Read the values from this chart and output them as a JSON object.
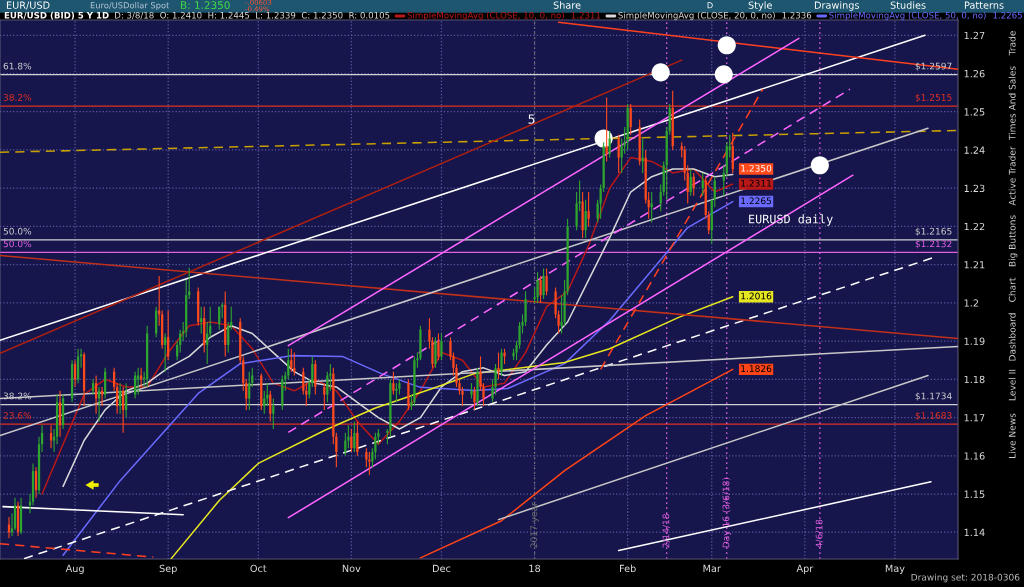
{
  "chart_data": {
    "type": "candlestick",
    "title": "EUR/USD (BID) 5 Y 1D",
    "subtitle": "D: 3/8/18  O: 1.2410  H: 1.2445  L: 1.2339  C: 1.2350  R: 0.0105",
    "x": [
      "2017-07-10",
      "2017-07-11",
      "2017-07-12",
      "2017-07-13",
      "2017-07-14",
      "2017-07-17",
      "2017-07-18",
      "2017-07-19",
      "2017-07-20",
      "2017-07-21",
      "2017-07-24",
      "2017-07-25",
      "2017-07-26",
      "2017-07-27",
      "2017-07-28",
      "2017-07-31",
      "2017-08-01",
      "2017-08-02",
      "2017-08-03",
      "2017-08-04",
      "2017-08-07",
      "2017-08-08",
      "2017-08-09",
      "2017-08-10",
      "2017-08-11",
      "2017-08-14",
      "2017-08-15",
      "2017-08-16",
      "2017-08-17",
      "2017-08-18",
      "2017-08-21",
      "2017-08-22",
      "2017-08-23",
      "2017-08-24",
      "2017-08-25",
      "2017-08-28",
      "2017-08-29",
      "2017-08-30",
      "2017-08-31",
      "2017-09-01",
      "2017-09-04",
      "2017-09-05",
      "2017-09-06",
      "2017-09-07",
      "2017-09-08",
      "2017-09-11",
      "2017-09-12",
      "2017-09-13",
      "2017-09-14",
      "2017-09-15",
      "2017-09-18",
      "2017-09-19",
      "2017-09-20",
      "2017-09-21",
      "2017-09-22",
      "2017-09-25",
      "2017-09-26",
      "2017-09-27",
      "2017-09-28",
      "2017-09-29",
      "2017-10-02",
      "2017-10-03",
      "2017-10-04",
      "2017-10-05",
      "2017-10-06",
      "2017-10-09",
      "2017-10-10",
      "2017-10-11",
      "2017-10-12",
      "2017-10-13",
      "2017-10-16",
      "2017-10-17",
      "2017-10-18",
      "2017-10-19",
      "2017-10-20",
      "2017-10-23",
      "2017-10-24",
      "2017-10-25",
      "2017-10-26",
      "2017-10-27",
      "2017-10-30",
      "2017-10-31",
      "2017-11-01",
      "2017-11-02",
      "2017-11-03",
      "2017-11-06",
      "2017-11-07",
      "2017-11-08",
      "2017-11-09",
      "2017-11-10",
      "2017-11-13",
      "2017-11-14",
      "2017-11-15",
      "2017-11-16",
      "2017-11-17",
      "2017-11-20",
      "2017-11-21",
      "2017-11-22",
      "2017-11-23",
      "2017-11-24",
      "2017-11-27",
      "2017-11-28",
      "2017-11-29",
      "2017-11-30",
      "2017-12-01",
      "2017-12-04",
      "2017-12-05",
      "2017-12-06",
      "2017-12-07",
      "2017-12-08",
      "2017-12-11",
      "2017-12-12",
      "2017-12-13",
      "2017-12-14",
      "2017-12-15",
      "2017-12-18",
      "2017-12-19",
      "2017-12-20",
      "2017-12-21",
      "2017-12-22",
      "2017-12-25",
      "2017-12-26",
      "2017-12-27",
      "2017-12-28",
      "2017-12-29",
      "2018-01-01",
      "2018-01-02",
      "2018-01-03",
      "2018-01-04",
      "2018-01-05",
      "2018-01-08",
      "2018-01-09",
      "2018-01-10",
      "2018-01-11",
      "2018-01-12",
      "2018-01-15",
      "2018-01-16",
      "2018-01-17",
      "2018-01-18",
      "2018-01-19",
      "2018-01-22",
      "2018-01-23",
      "2018-01-24",
      "2018-01-25",
      "2018-01-26",
      "2018-01-29",
      "2018-01-30",
      "2018-01-31",
      "2018-02-01",
      "2018-02-02",
      "2018-02-05",
      "2018-02-06",
      "2018-02-07",
      "2018-02-08",
      "2018-02-09",
      "2018-02-12",
      "2018-02-13",
      "2018-02-14",
      "2018-02-15",
      "2018-02-16",
      "2018-02-19",
      "2018-02-20",
      "2018-02-21",
      "2018-02-22",
      "2018-02-23",
      "2018-02-26",
      "2018-02-27",
      "2018-02-28",
      "2018-03-01",
      "2018-03-02",
      "2018-03-05",
      "2018-03-06",
      "2018-03-07",
      "2018-03-08"
    ],
    "ohlc": [
      [
        1.142,
        1.144,
        1.1385,
        1.14
      ],
      [
        1.14,
        1.145,
        1.139,
        1.141
      ],
      [
        1.141,
        1.149,
        1.1405,
        1.147
      ],
      [
        1.147,
        1.148,
        1.139,
        1.14
      ],
      [
        1.14,
        1.149,
        1.1395,
        1.147
      ],
      [
        1.147,
        1.15,
        1.145,
        1.148
      ],
      [
        1.148,
        1.158,
        1.147,
        1.156
      ],
      [
        1.156,
        1.157,
        1.149,
        1.151
      ],
      [
        1.151,
        1.165,
        1.15,
        1.163
      ],
      [
        1.163,
        1.168,
        1.161,
        1.166
      ],
      [
        1.166,
        1.168,
        1.162,
        1.164
      ],
      [
        1.164,
        1.167,
        1.161,
        1.165
      ],
      [
        1.165,
        1.176,
        1.163,
        1.174
      ],
      [
        1.174,
        1.177,
        1.165,
        1.168
      ],
      [
        1.168,
        1.176,
        1.167,
        1.175
      ],
      [
        1.175,
        1.185,
        1.174,
        1.184
      ],
      [
        1.184,
        1.185,
        1.178,
        1.18
      ],
      [
        1.18,
        1.188,
        1.179,
        1.186
      ],
      [
        1.186,
        1.188,
        1.183,
        1.1865
      ],
      [
        1.1865,
        1.187,
        1.173,
        1.177
      ],
      [
        1.177,
        1.18,
        1.176,
        1.179
      ],
      [
        1.179,
        1.181,
        1.171,
        1.175
      ],
      [
        1.175,
        1.178,
        1.169,
        1.177
      ],
      [
        1.177,
        1.178,
        1.173,
        1.176
      ],
      [
        1.176,
        1.183,
        1.175,
        1.182
      ],
      [
        1.182,
        1.183,
        1.177,
        1.178
      ],
      [
        1.178,
        1.179,
        1.171,
        1.173
      ],
      [
        1.173,
        1.179,
        1.171,
        1.177
      ],
      [
        1.177,
        1.178,
        1.166,
        1.172
      ],
      [
        1.172,
        1.179,
        1.17,
        1.176
      ],
      [
        1.176,
        1.182,
        1.175,
        1.181
      ],
      [
        1.18,
        1.183,
        1.176,
        1.181
      ],
      [
        1.181,
        1.183,
        1.178,
        1.18
      ],
      [
        1.18,
        1.182,
        1.178,
        1.1805
      ],
      [
        1.18,
        1.194,
        1.178,
        1.192
      ],
      [
        1.192,
        1.199,
        1.191,
        1.198
      ],
      [
        1.198,
        1.207,
        1.194,
        1.197
      ],
      [
        1.197,
        1.198,
        1.188,
        1.189
      ],
      [
        1.189,
        1.192,
        1.182,
        1.191
      ],
      [
        1.191,
        1.198,
        1.185,
        1.186
      ],
      [
        1.186,
        1.19,
        1.185,
        1.189
      ],
      [
        1.189,
        1.193,
        1.187,
        1.192
      ],
      [
        1.192,
        1.195,
        1.19,
        1.1925
      ],
      [
        1.1925,
        1.206,
        1.191,
        1.202
      ],
      [
        1.202,
        1.2092,
        1.201,
        1.203
      ],
      [
        1.203,
        1.204,
        1.194,
        1.195
      ],
      [
        1.195,
        1.199,
        1.192,
        1.196
      ],
      [
        1.196,
        1.199,
        1.187,
        1.189
      ],
      [
        1.189,
        1.195,
        1.184,
        1.192
      ],
      [
        1.192,
        1.199,
        1.191,
        1.194
      ],
      [
        1.1945,
        1.199,
        1.193,
        1.199
      ],
      [
        1.199,
        1.2,
        1.196,
        1.1995
      ],
      [
        1.1995,
        1.203,
        1.186,
        1.189
      ],
      [
        1.189,
        1.195,
        1.187,
        1.194
      ],
      [
        1.194,
        1.199,
        1.193,
        1.195
      ],
      [
        1.195,
        1.196,
        1.184,
        1.185
      ],
      [
        1.185,
        1.186,
        1.177,
        1.179
      ],
      [
        1.179,
        1.18,
        1.172,
        1.175
      ],
      [
        1.175,
        1.182,
        1.172,
        1.179
      ],
      [
        1.179,
        1.183,
        1.178,
        1.181
      ],
      [
        1.181,
        1.1815,
        1.172,
        1.173
      ],
      [
        1.173,
        1.177,
        1.171,
        1.175
      ],
      [
        1.175,
        1.179,
        1.173,
        1.176
      ],
      [
        1.176,
        1.177,
        1.169,
        1.171
      ],
      [
        1.171,
        1.175,
        1.167,
        1.173
      ],
      [
        1.173,
        1.181,
        1.172,
        1.18
      ],
      [
        1.18,
        1.182,
        1.177,
        1.181
      ],
      [
        1.181,
        1.188,
        1.18,
        1.185
      ],
      [
        1.185,
        1.188,
        1.182,
        1.183
      ],
      [
        1.183,
        1.187,
        1.181,
        1.182
      ],
      [
        1.182,
        1.183,
        1.176,
        1.177
      ],
      [
        1.177,
        1.179,
        1.173,
        1.176
      ],
      [
        1.176,
        1.18,
        1.175,
        1.179
      ],
      [
        1.179,
        1.186,
        1.178,
        1.184
      ],
      [
        1.184,
        1.185,
        1.176,
        1.178
      ],
      [
        1.178,
        1.179,
        1.172,
        1.176
      ],
      [
        1.176,
        1.182,
        1.174,
        1.181
      ],
      [
        1.181,
        1.184,
        1.177,
        1.1815
      ],
      [
        1.1815,
        1.183,
        1.163,
        1.165
      ],
      [
        1.165,
        1.166,
        1.157,
        1.161
      ],
      [
        1.161,
        1.166,
        1.16,
        1.164
      ],
      [
        1.164,
        1.168,
        1.162,
        1.165
      ],
      [
        1.165,
        1.167,
        1.161,
        1.162
      ],
      [
        1.162,
        1.169,
        1.161,
        1.166
      ],
      [
        1.166,
        1.169,
        1.16,
        1.161
      ],
      [
        1.161,
        1.162,
        1.157,
        1.159
      ],
      [
        1.159,
        1.161,
        1.155,
        1.1585
      ],
      [
        1.1585,
        1.162,
        1.157,
        1.161
      ],
      [
        1.161,
        1.166,
        1.159,
        1.165
      ],
      [
        1.165,
        1.167,
        1.163,
        1.166
      ],
      [
        1.166,
        1.167,
        1.163,
        1.1665
      ],
      [
        1.1665,
        1.18,
        1.165,
        1.179
      ],
      [
        1.179,
        1.182,
        1.176,
        1.177
      ],
      [
        1.177,
        1.179,
        1.174,
        1.1775
      ],
      [
        1.1775,
        1.18,
        1.176,
        1.179
      ],
      [
        1.179,
        1.18,
        1.172,
        1.173
      ],
      [
        1.173,
        1.176,
        1.172,
        1.174
      ],
      [
        1.174,
        1.186,
        1.173,
        1.185
      ],
      [
        1.185,
        1.187,
        1.183,
        1.1855
      ],
      [
        1.1855,
        1.194,
        1.185,
        1.193
      ],
      [
        1.193,
        1.196,
        1.188,
        1.19
      ],
      [
        1.19,
        1.191,
        1.183,
        1.184
      ],
      [
        1.184,
        1.191,
        1.183,
        1.19
      ],
      [
        1.19,
        1.192,
        1.185,
        1.186
      ],
      [
        1.186,
        1.192,
        1.185,
        1.19
      ],
      [
        1.19,
        1.191,
        1.185,
        1.186
      ],
      [
        1.186,
        1.187,
        1.181,
        1.183
      ],
      [
        1.183,
        1.184,
        1.178,
        1.179
      ],
      [
        1.179,
        1.18,
        1.176,
        1.177
      ],
      [
        1.177,
        1.178,
        1.173,
        1.176
      ],
      [
        1.176,
        1.179,
        1.175,
        1.177
      ],
      [
        1.177,
        1.178,
        1.172,
        1.174
      ],
      [
        1.174,
        1.183,
        1.173,
        1.182
      ],
      [
        1.182,
        1.186,
        1.177,
        1.178
      ],
      [
        1.178,
        1.179,
        1.173,
        1.175
      ],
      [
        1.175,
        1.18,
        1.174,
        1.178
      ],
      [
        1.178,
        1.184,
        1.176,
        1.183
      ],
      [
        1.183,
        1.187,
        1.18,
        1.182
      ],
      [
        1.182,
        1.188,
        1.181,
        1.187
      ],
      [
        1.187,
        1.188,
        1.184,
        1.186
      ],
      [
        1.186,
        1.188,
        1.185,
        1.187
      ],
      [
        1.187,
        1.19,
        1.185,
        1.189
      ],
      [
        1.189,
        1.195,
        1.188,
        1.194
      ],
      [
        1.194,
        1.197,
        1.192,
        1.195
      ],
      [
        1.195,
        1.203,
        1.194,
        1.201
      ],
      [
        1.201,
        1.204,
        1.2,
        1.2015
      ],
      [
        1.2015,
        1.208,
        1.2,
        1.206
      ],
      [
        1.206,
        1.207,
        1.2,
        1.202
      ],
      [
        1.202,
        1.209,
        1.201,
        1.207
      ],
      [
        1.207,
        1.209,
        1.202,
        1.203
      ],
      [
        1.203,
        1.204,
        1.196,
        1.197
      ],
      [
        1.197,
        1.198,
        1.192,
        1.194
      ],
      [
        1.194,
        1.202,
        1.192,
        1.195
      ],
      [
        1.195,
        1.206,
        1.194,
        1.203
      ],
      [
        1.203,
        1.222,
        1.202,
        1.22
      ],
      [
        1.22,
        1.229,
        1.219,
        1.226
      ],
      [
        1.226,
        1.232,
        1.224,
        1.2265
      ],
      [
        1.2265,
        1.229,
        1.217,
        1.219
      ],
      [
        1.219,
        1.227,
        1.217,
        1.224
      ],
      [
        1.224,
        1.229,
        1.22,
        1.222
      ],
      [
        1.222,
        1.227,
        1.221,
        1.226
      ],
      [
        1.226,
        1.231,
        1.222,
        1.23
      ],
      [
        1.23,
        1.242,
        1.229,
        1.241
      ],
      [
        1.241,
        1.2537,
        1.237,
        1.239
      ],
      [
        1.239,
        1.245,
        1.238,
        1.243
      ],
      [
        1.243,
        1.244,
        1.234,
        1.238
      ],
      [
        1.238,
        1.243,
        1.234,
        1.241
      ],
      [
        1.241,
        1.246,
        1.239,
        1.242
      ],
      [
        1.242,
        1.252,
        1.24,
        1.251
      ],
      [
        1.251,
        1.252,
        1.244,
        1.246
      ],
      [
        1.246,
        1.248,
        1.236,
        1.237
      ],
      [
        1.237,
        1.243,
        1.234,
        1.238
      ],
      [
        1.238,
        1.24,
        1.226,
        1.227
      ],
      [
        1.227,
        1.229,
        1.222,
        1.225
      ],
      [
        1.225,
        1.229,
        1.221,
        1.226
      ],
      [
        1.226,
        1.231,
        1.224,
        1.229
      ],
      [
        1.229,
        1.237,
        1.228,
        1.236
      ],
      [
        1.236,
        1.246,
        1.227,
        1.245
      ],
      [
        1.245,
        1.252,
        1.244,
        1.251
      ],
      [
        1.251,
        1.2555,
        1.24,
        1.241
      ],
      [
        1.241,
        1.242,
        1.238,
        1.24
      ],
      [
        1.24,
        1.241,
        1.232,
        1.234
      ],
      [
        1.234,
        1.236,
        1.226,
        1.229
      ],
      [
        1.229,
        1.235,
        1.228,
        1.233
      ],
      [
        1.233,
        1.234,
        1.228,
        1.23
      ],
      [
        1.23,
        1.234,
        1.228,
        1.232
      ],
      [
        1.232,
        1.233,
        1.222,
        1.223
      ],
      [
        1.223,
        1.224,
        1.218,
        1.219
      ],
      [
        1.219,
        1.227,
        1.2155,
        1.227
      ],
      [
        1.227,
        1.233,
        1.225,
        1.232
      ],
      [
        1.232,
        1.236,
        1.228,
        1.234
      ],
      [
        1.234,
        1.242,
        1.233,
        1.241
      ],
      [
        1.24,
        1.244,
        1.238,
        1.241
      ],
      [
        1.241,
        1.2445,
        1.2339,
        1.235
      ]
    ],
    "series": [
      {
        "type": "line",
        "name": "SimpleMovingAvg (CLOSE, 10, 0, no)",
        "color": "#b81818",
        "x": [
          "2017-07-21",
          "2017-07-28",
          "2017-08-04",
          "2017-08-11",
          "2017-08-18",
          "2017-08-25",
          "2017-09-01",
          "2017-09-08",
          "2017-09-15",
          "2017-09-22",
          "2017-09-29",
          "2017-10-06",
          "2017-10-13",
          "2017-10-20",
          "2017-10-27",
          "2017-11-03",
          "2017-11-10",
          "2017-11-17",
          "2017-11-24",
          "2017-12-01",
          "2017-12-08",
          "2017-12-15",
          "2017-12-22",
          "2017-12-29",
          "2018-01-05",
          "2018-01-12",
          "2018-01-19",
          "2018-01-26",
          "2018-02-02",
          "2018-02-09",
          "2018-02-16",
          "2018-02-23",
          "2018-03-02",
          "2018-03-08"
        ],
        "values": [
          1.15,
          1.163,
          1.176,
          1.18,
          1.178,
          1.178,
          1.187,
          1.194,
          1.195,
          1.194,
          1.188,
          1.179,
          1.177,
          1.18,
          1.177,
          1.169,
          1.163,
          1.169,
          1.177,
          1.187,
          1.185,
          1.178,
          1.179,
          1.187,
          1.199,
          1.203,
          1.215,
          1.23,
          1.238,
          1.237,
          1.234,
          1.235,
          1.229,
          1.2311
        ],
        "value_labels": [
          null,
          null,
          null,
          null,
          null,
          null,
          null,
          null,
          null,
          null,
          null,
          null,
          null,
          null,
          null,
          null,
          null,
          null,
          null,
          null,
          null,
          null,
          null,
          null,
          null,
          null,
          null,
          null,
          null,
          null,
          null,
          null,
          null,
          "1.2311"
        ]
      },
      {
        "type": "line",
        "name": "SimpleMovingAvg (CLOSE, 20, 0, no)",
        "color": "#d8d8d8",
        "x": [
          "2017-07-28",
          "2017-08-04",
          "2017-08-11",
          "2017-08-18",
          "2017-08-25",
          "2017-09-01",
          "2017-09-08",
          "2017-09-15",
          "2017-09-22",
          "2017-09-29",
          "2017-10-06",
          "2017-10-13",
          "2017-10-20",
          "2017-10-27",
          "2017-11-03",
          "2017-11-10",
          "2017-11-17",
          "2017-11-24",
          "2017-12-01",
          "2017-12-08",
          "2017-12-15",
          "2017-12-22",
          "2017-12-29",
          "2018-01-05",
          "2018-01-12",
          "2018-01-19",
          "2018-01-26",
          "2018-02-02",
          "2018-02-09",
          "2018-02-16",
          "2018-02-23",
          "2018-03-02",
          "2018-03-08"
        ],
        "values": [
          1.152,
          1.164,
          1.172,
          1.177,
          1.179,
          1.183,
          1.186,
          1.191,
          1.194,
          1.192,
          1.187,
          1.182,
          1.179,
          1.178,
          1.174,
          1.17,
          1.167,
          1.17,
          1.178,
          1.182,
          1.183,
          1.181,
          1.182,
          1.189,
          1.195,
          1.206,
          1.217,
          1.229,
          1.233,
          1.235,
          1.235,
          1.233,
          1.2336
        ]
      },
      {
        "type": "line",
        "name": "SimpleMovingAvg (CLOSE, 50, 0, no)",
        "color": "#6a6aff",
        "x": [
          "2017-07-28",
          "2017-08-16",
          "2017-09-11",
          "2017-09-25",
          "2017-10-12",
          "2017-10-29",
          "2017-11-11",
          "2017-11-24",
          "2017-12-12",
          "2017-12-23",
          "2018-01-11",
          "2018-01-26",
          "2018-02-21",
          "2018-03-08"
        ],
        "values": [
          1.134,
          1.1535,
          1.1763,
          1.1841,
          1.1862,
          1.186,
          1.1815,
          1.1779,
          1.1771,
          1.1776,
          1.1841,
          1.1954,
          1.2197,
          1.2265
        ],
        "value_labels": [
          null,
          null,
          null,
          null,
          null,
          null,
          null,
          null,
          null,
          null,
          null,
          null,
          null,
          "1.2265"
        ]
      },
      {
        "type": "line",
        "color": "#e6e620",
        "x": [
          "2017-09-02",
          "2017-09-18",
          "2017-10-01",
          "2017-10-23",
          "2017-11-09",
          "2017-11-28",
          "2017-12-12",
          "2018-01-11",
          "2018-01-26",
          "2018-02-18",
          "2018-03-08"
        ],
        "values": [
          1.1331,
          1.1483,
          1.158,
          1.1666,
          1.1725,
          1.1776,
          1.1815,
          1.1844,
          1.188,
          1.1962,
          1.2016
        ],
        "value_labels": [
          null,
          null,
          null,
          null,
          null,
          null,
          null,
          null,
          null,
          null,
          "1.2016"
        ]
      },
      {
        "type": "line",
        "color": "#ff4418",
        "x": [
          "2017-11-24",
          "2017-12-21",
          "2018-01-11",
          "2018-02-07",
          "2018-03-08"
        ],
        "values": [
          1.1333,
          1.143,
          1.1561,
          1.1705,
          1.1826
        ],
        "value_labels": [
          null,
          null,
          null,
          null,
          "1.1826"
        ]
      },
      {
        "type": "line",
        "color": "#ffffff",
        "x": [
          "2017-07-07",
          "2018-05-11"
        ],
        "values": [
          1.1902,
          1.27
        ]
      },
      {
        "type": "line",
        "color": "#ffffff",
        "x": [
          "2018-01-29",
          "2018-05-13"
        ],
        "values": [
          1.1352,
          1.1532
        ]
      },
      {
        "type": "line",
        "color": "#ffffff",
        "x": [
          "2017-07-08",
          "2017-09-06"
        ],
        "values": [
          1.1467,
          1.1446
        ]
      },
      {
        "type": "line",
        "color": "#ffffff",
        "line_style": "dashed",
        "x": [
          "2017-07-15",
          "2018-05-14"
        ],
        "values": [
          1.1331,
          1.2119
        ]
      },
      {
        "type": "line",
        "color": "#c8a000",
        "line_style": "dashed",
        "x": [
          "2017-07-07",
          "2018-05-22"
        ],
        "values": [
          1.2394,
          1.2451
        ]
      },
      {
        "type": "line",
        "color": "#c0301a",
        "x": [
          "2017-07-07",
          "2018-05-22"
        ],
        "values": [
          1.2124,
          1.1907
        ]
      },
      {
        "type": "line",
        "color": "#ff4020",
        "x": [
          "2018-01-09",
          "2018-05-22"
        ],
        "values": [
          1.2734,
          1.2611
        ]
      },
      {
        "type": "line",
        "color": "#c8c8c8",
        "x": [
          "2017-07-07",
          "2018-05-22"
        ],
        "values": [
          1.175,
          1.1886
        ]
      },
      {
        "type": "line",
        "color": "#c8c8c8",
        "x": [
          "2017-12-20",
          "2018-05-12"
        ],
        "values": [
          1.1433,
          1.181
        ]
      },
      {
        "type": "line",
        "color": "#c8c8c8",
        "x": [
          "2017-07-07",
          "2018-05-12"
        ],
        "values": [
          1.1653,
          1.2457
        ]
      },
      {
        "type": "line",
        "color": "#ff66ff",
        "x": [
          "2017-10-11",
          "2018-03-30"
        ],
        "values": [
          1.1888,
          1.2692
        ]
      },
      {
        "type": "line",
        "color": "#ff66ff",
        "x": [
          "2017-10-11",
          "2018-04-17"
        ],
        "values": [
          1.1438,
          1.2334
        ]
      },
      {
        "type": "line",
        "color": "#ff66ff",
        "line_style": "dashed",
        "x": [
          "2017-10-11",
          "2018-04-16"
        ],
        "values": [
          1.1661,
          1.2559
        ]
      },
      {
        "type": "line",
        "color": "#ff4020",
        "line_style": "dashed",
        "x": [
          "2018-01-23",
          "2018-03-18"
        ],
        "values": [
          1.1826,
          1.2559
        ]
      },
      {
        "type": "line",
        "color": "#b02010",
        "x": [
          "2017-07-07",
          "2018-02-19"
        ],
        "values": [
          1.1868,
          1.2635
        ]
      },
      {
        "type": "line",
        "color": "#ff4020",
        "line_style": "dashed",
        "x": [
          "2017-07-07",
          "2017-08-27"
        ],
        "values": [
          1.137,
          1.1335
        ]
      },
      {
        "type": "scatter",
        "color": "#ffffff",
        "marker": "circle",
        "x": [
          "2018-01-24",
          "2018-02-12",
          "2018-03-05",
          "2018-03-06",
          "2018-04-06"
        ],
        "values": [
          1.243,
          1.2603,
          1.2598,
          1.2674,
          1.236
        ]
      }
    ],
    "ref_lines": [
      {
        "axis": "y",
        "value": 1.2597,
        "label": "$1.2597",
        "color": "#d0d0d0"
      },
      {
        "axis": "y",
        "value": 1.2515,
        "label": "$1.2515",
        "color": "#e03020"
      },
      {
        "axis": "y",
        "value": 1.2165,
        "label": "$1.2165",
        "color": "#d0d0d0"
      },
      {
        "axis": "y",
        "value": 1.2132,
        "label": "$1.2132",
        "color": "#e060e0"
      },
      {
        "axis": "y",
        "value": 1.1734,
        "label": "$1.1734",
        "color": "#d0d0d0"
      },
      {
        "axis": "y",
        "value": 1.1683,
        "label": "$1.1683",
        "color": "#e03020"
      },
      {
        "axis": "x",
        "value": "2018-01-01",
        "label": "2017 year",
        "color": "#707070",
        "line_style": "dotted"
      },
      {
        "axis": "x",
        "value": "2018-02-14",
        "label": "2/14/18",
        "color": "#e060e0",
        "line_style": "dotted"
      },
      {
        "axis": "x",
        "value": "2018-03-06",
        "label": "Day 16 (3/6/18)",
        "color": "#e060e0",
        "line_style": "dotted"
      },
      {
        "axis": "x",
        "value": "2018-04-06",
        "label": "4/6/18",
        "color": "#e060e0",
        "line_style": "dotted"
      }
    ],
    "annotations": [
      "EUR/USD",
      "Euro/USDollar Spot",
      "B: 1.2350",
      "-.00603",
      "-0.49%",
      "Share",
      "Style",
      "Drawings",
      "Studies",
      "Patterns",
      "D",
      "Trade",
      "Times And Sales",
      "Active Trader",
      "Big Buttons",
      "Chart",
      "Dashboard",
      "Level II",
      "Live News",
      "Drawing set: 2018-0306",
      "EURUSD daily",
      "1.2311",
      "1.2336",
      "1.2265",
      {
        "text": "5",
        "x": "2017-12-31",
        "y": 1.2478
      },
      {
        "text": "61.8%",
        "x": "2017-07-08",
        "y": 1.2597
      },
      {
        "text": "38.2%",
        "x": "2017-07-08",
        "y": 1.2515
      },
      {
        "text": "50.0%",
        "x": "2017-07-08",
        "y": 1.2165
      },
      {
        "text": "50.0%",
        "x": "2017-07-08",
        "y": 1.2132
      },
      {
        "text": "38.2%",
        "x": "2017-07-08",
        "y": 1.1734
      },
      {
        "text": "23.6%",
        "x": "2017-07-08",
        "y": 1.1683
      },
      {
        "text": "1.2350",
        "x": "2018-03-08",
        "y": 1.235
      }
    ],
    "xlim": [
      "2017-07-07",
      "2018-05-22"
    ],
    "xticks": [
      {
        "value": "2017-08-01",
        "label": "Aug"
      },
      {
        "value": "2017-09-01",
        "label": "Sep"
      },
      {
        "value": "2017-10-01",
        "label": "Oct"
      },
      {
        "value": "2017-11-01",
        "label": "Nov"
      },
      {
        "value": "2017-12-01",
        "label": "Dec"
      },
      {
        "value": "2018-01-01",
        "label": "18"
      },
      {
        "value": "2018-02-01",
        "label": "Feb"
      },
      {
        "value": "2018-03-01",
        "label": "Mar"
      },
      {
        "value": "2018-04-01",
        "label": "Apr"
      },
      {
        "value": "2018-05-01",
        "label": "May"
      }
    ],
    "ylim": [
      1.133,
      1.274
    ],
    "yticks": [
      1.14,
      1.15,
      1.16,
      1.17,
      1.18,
      1.19,
      1.2,
      1.21,
      1.22,
      1.23,
      1.24,
      1.25,
      1.26,
      1.27
    ],
    "grid": true,
    "legend": "top"
  }
}
